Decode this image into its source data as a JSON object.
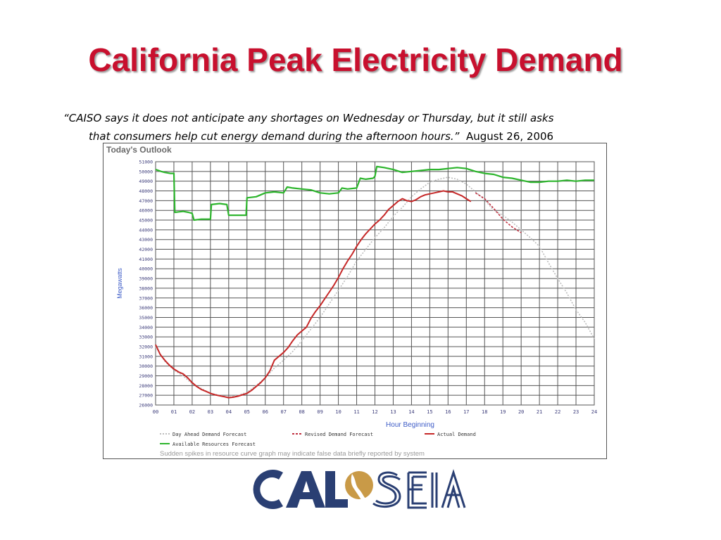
{
  "slide": {
    "title": "California Peak Electricity Demand",
    "quote_line1": "“CAISO says it does not anticipate any shortages on Wednesday or Thursday, but it still asks",
    "quote_line2": "that consumers help cut energy demand during the afternoon hours.”",
    "date": "August 26, 2006"
  },
  "chart_data": {
    "type": "line",
    "title": "Today's Outlook",
    "xlabel": "Hour Beginning",
    "ylabel": "Megawatts",
    "xlim": [
      0,
      24
    ],
    "ylim": [
      26000,
      51000
    ],
    "grid": true,
    "x_ticks": [
      "00",
      "01",
      "02",
      "03",
      "04",
      "05",
      "06",
      "07",
      "08",
      "09",
      "10",
      "11",
      "12",
      "13",
      "14",
      "15",
      "16",
      "17",
      "18",
      "19",
      "20",
      "21",
      "22",
      "23",
      "24"
    ],
    "y_ticks": [
      "26000",
      "27000",
      "28000",
      "29000",
      "30000",
      "31000",
      "32000",
      "33000",
      "34000",
      "35000",
      "36000",
      "37000",
      "38000",
      "39000",
      "40000",
      "41000",
      "42000",
      "43000",
      "44000",
      "45000",
      "46000",
      "47000",
      "48000",
      "49000",
      "50000",
      "51000"
    ],
    "legend_position": "bottom",
    "note": "Sudden spikes in resource curve graph may indicate false data briefly reported by system",
    "series": [
      {
        "name": "Day Ahead Demand Forecast",
        "color": "#bdbdbd",
        "style": "dotted",
        "x": [
          0,
          0.5,
          1,
          1.5,
          2,
          2.5,
          3,
          3.5,
          4,
          4.5,
          5,
          5.5,
          6,
          6.5,
          7,
          7.5,
          8,
          8.5,
          9,
          9.5,
          10,
          10.5,
          11,
          11.5,
          12,
          12.5,
          13,
          13.5,
          14,
          14.5,
          15,
          15.5,
          16,
          16.5,
          17,
          17.5,
          18,
          18.5,
          19,
          19.5,
          20,
          20.5,
          21,
          21.5,
          22,
          22.5,
          23,
          23.5,
          24
        ],
        "y": [
          32000,
          30500,
          29600,
          29000,
          28200,
          27700,
          27200,
          27000,
          26800,
          27000,
          27300,
          28000,
          28800,
          29800,
          30600,
          31500,
          32600,
          33800,
          35000,
          36400,
          37800,
          39200,
          40800,
          42000,
          43200,
          44200,
          45400,
          46300,
          47400,
          48200,
          48900,
          49200,
          49400,
          49200,
          48700,
          47900,
          47100,
          46000,
          45500,
          44800,
          44000,
          43200,
          42300,
          40600,
          39000,
          37500,
          35800,
          34500,
          32800
        ]
      },
      {
        "name": "Revised Demand Forecast",
        "color": "#c03040",
        "style": "dashed",
        "x": [
          17.5,
          18,
          18.5,
          19,
          19.5,
          20
        ],
        "y": [
          47800,
          47200,
          46200,
          45100,
          44300,
          43700
        ]
      },
      {
        "name": "Actual Demand",
        "color": "#c62828",
        "style": "solid",
        "x": [
          0,
          0.25,
          0.5,
          0.75,
          1,
          1.25,
          1.5,
          1.75,
          2,
          2.25,
          2.5,
          2.75,
          3,
          3.25,
          3.5,
          3.75,
          4,
          4.25,
          4.5,
          4.75,
          5,
          5.25,
          5.5,
          5.75,
          6,
          6.25,
          6.5,
          6.75,
          7,
          7.25,
          7.5,
          7.75,
          8,
          8.25,
          8.5,
          8.75,
          9,
          9.25,
          9.5,
          9.75,
          10,
          10.25,
          10.5,
          10.75,
          11,
          11.25,
          11.5,
          11.75,
          12,
          12.25,
          12.5,
          12.75,
          13,
          13.25,
          13.5,
          13.75,
          14,
          14.25,
          14.5,
          14.75,
          15,
          15.25,
          15.5,
          15.75,
          16,
          16.25,
          16.5,
          16.75,
          17,
          17.25
        ],
        "y": [
          32200,
          31200,
          30600,
          30100,
          29700,
          29400,
          29200,
          28800,
          28300,
          27900,
          27600,
          27400,
          27200,
          27050,
          26950,
          26850,
          26750,
          26800,
          26900,
          27050,
          27200,
          27500,
          27900,
          28300,
          28800,
          29500,
          30600,
          31000,
          31400,
          31900,
          32600,
          33200,
          33600,
          34000,
          34900,
          35600,
          36200,
          36900,
          37600,
          38300,
          39100,
          40000,
          40800,
          41500,
          42300,
          43000,
          43600,
          44100,
          44600,
          45000,
          45500,
          46100,
          46500,
          46900,
          47200,
          47000,
          46900,
          47100,
          47400,
          47600,
          47700,
          47800,
          47900,
          48000,
          47900,
          47900,
          47700,
          47500,
          47200,
          46900
        ]
      },
      {
        "name": "Available Resources Forecast",
        "color": "#2db52d",
        "style": "solid",
        "x": [
          0,
          0.3,
          0.5,
          0.8,
          1,
          1.05,
          1.5,
          1.8,
          2,
          2.1,
          2.5,
          3,
          3.05,
          3.5,
          3.9,
          4,
          4.05,
          4.5,
          4.95,
          5,
          5.05,
          5.5,
          6,
          6.5,
          7,
          7.2,
          7.5,
          8,
          8.5,
          9,
          9.5,
          10,
          10.2,
          10.5,
          11,
          11.2,
          11.5,
          11.9,
          12,
          12.1,
          12.5,
          13,
          13.5,
          14,
          14.5,
          15,
          15.5,
          16,
          16.5,
          17,
          17.5,
          18,
          18.5,
          19,
          19.5,
          20,
          20.5,
          21,
          21.5,
          22,
          22.5,
          23,
          23.5,
          24
        ],
        "y": [
          50200,
          50000,
          49900,
          49800,
          49800,
          45800,
          45900,
          45800,
          45700,
          45000,
          45100,
          45100,
          46600,
          46700,
          46600,
          45500,
          45500,
          45500,
          45500,
          47300,
          47300,
          47400,
          47800,
          47900,
          47800,
          48400,
          48300,
          48200,
          48100,
          47800,
          47700,
          47800,
          48300,
          48200,
          48300,
          49300,
          49200,
          49300,
          49500,
          50500,
          50400,
          50200,
          49900,
          50000,
          50100,
          50200,
          50200,
          50300,
          50400,
          50300,
          50000,
          49800,
          49700,
          49400,
          49300,
          49100,
          48900,
          48900,
          49000,
          49000,
          49100,
          49000,
          49100,
          49100
        ]
      }
    ]
  }
}
